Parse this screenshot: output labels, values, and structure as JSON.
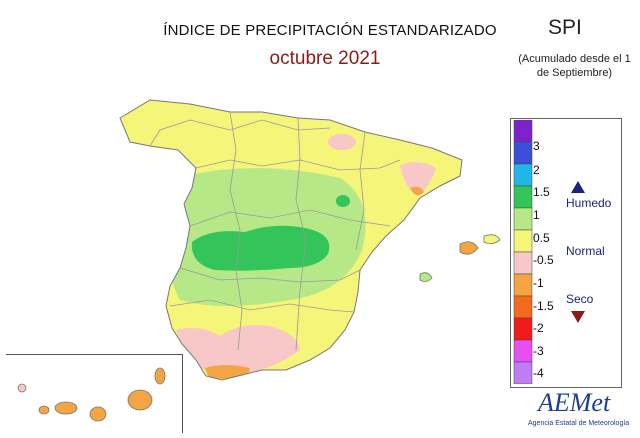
{
  "map": {
    "title": "ÍNDICE DE PRECIPITACIÓN ESTANDARIZADO",
    "subtitle": "octubre 2021",
    "index_label": "SPI",
    "index_note": "(Acumulado desde el 1 de Septiembre)"
  },
  "legend": {
    "classes": [
      {
        "color": "#7e22ce",
        "label": "3"
      },
      {
        "color": "#3b4fd8",
        "label": "2"
      },
      {
        "color": "#22b5e8",
        "label": "1.5"
      },
      {
        "color": "#33c45a",
        "label": "1"
      },
      {
        "color": "#b6e887",
        "label": "0.5"
      },
      {
        "color": "#f5f57a",
        "label": "-0.5"
      },
      {
        "color": "#f8c7c7",
        "label": "-1"
      },
      {
        "color": "#f2a542",
        "label": "-1.5"
      },
      {
        "color": "#f26a1b",
        "label": "-2"
      },
      {
        "color": "#f21b1b",
        "label": "-3"
      },
      {
        "color": "#e64ff0",
        "label": "-4"
      },
      {
        "color": "#c07cf2",
        "label": ""
      }
    ],
    "categories": {
      "wet": "Humedo",
      "normal": "Normal",
      "dry": "Seco"
    },
    "wet_icon": "triangle-up-icon",
    "dry_icon": "triangle-down-icon",
    "wet_color": "#1a237e",
    "dry_color": "#8b1a1a"
  },
  "logo": {
    "name": "AEMet",
    "tagline": "Agencia Estatal de Meteorología"
  }
}
